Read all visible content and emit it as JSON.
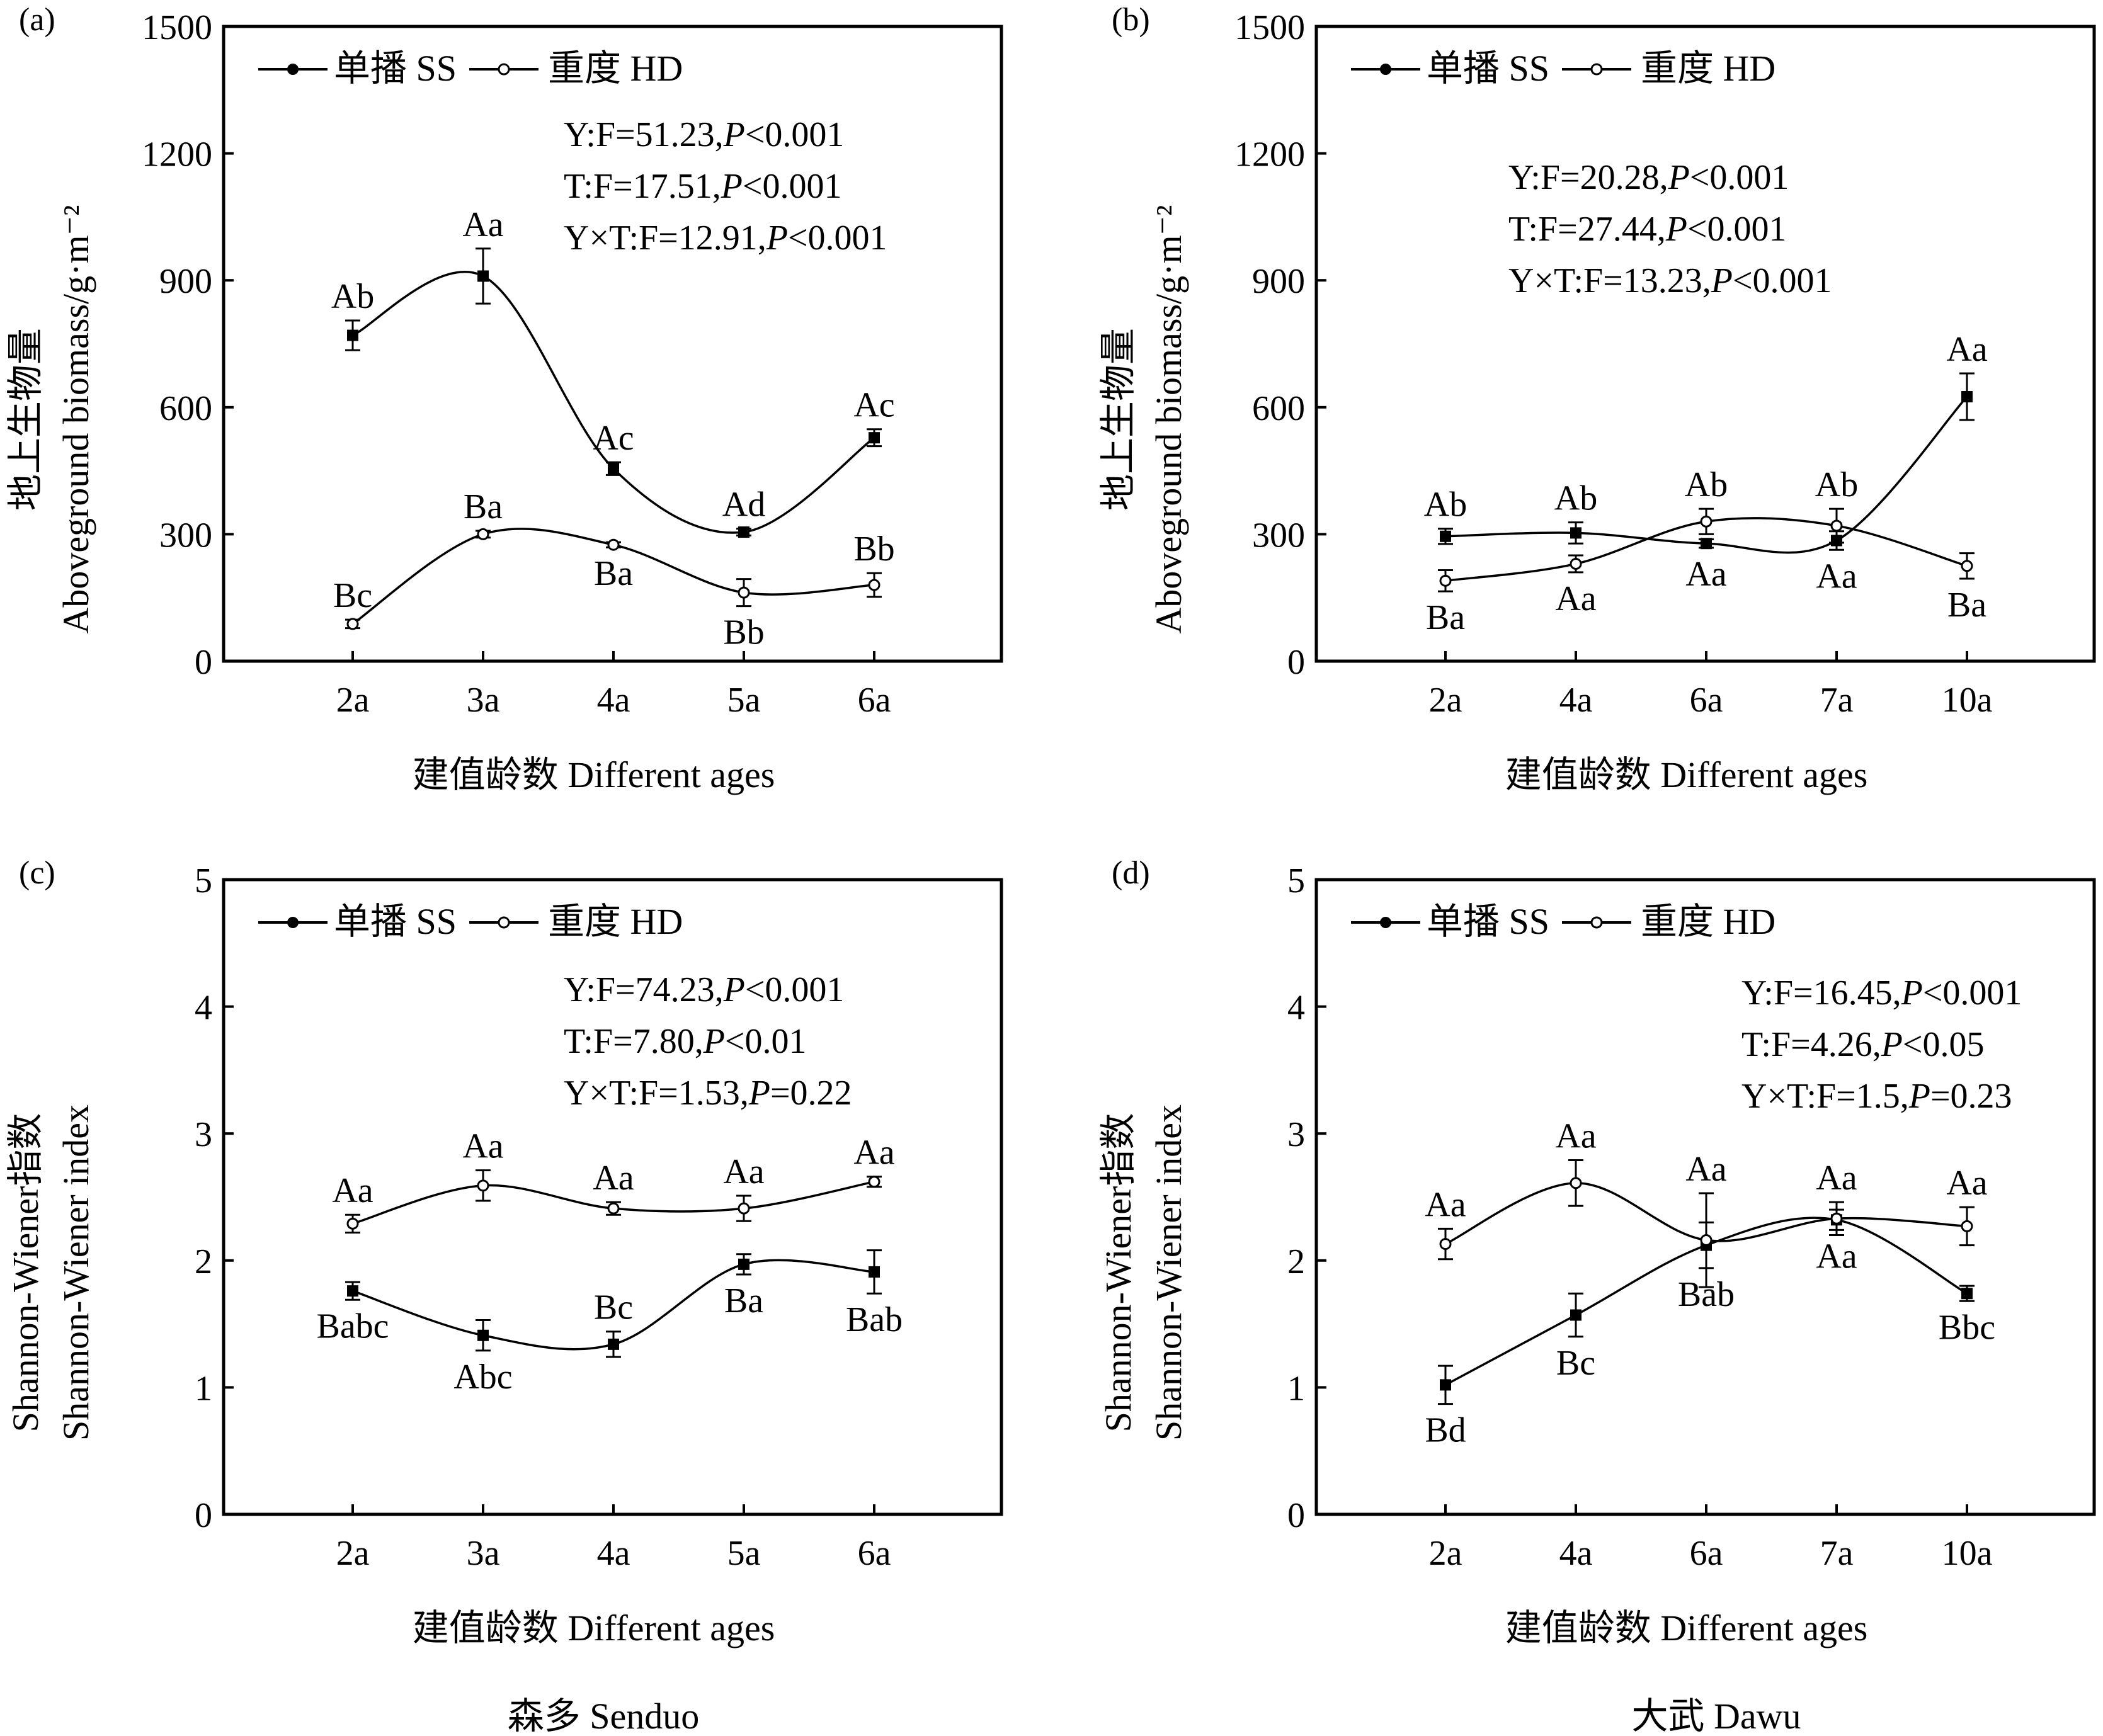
{
  "figure": {
    "bottom_labels": [
      "森多 Senduo",
      "大武 Dawu"
    ]
  },
  "chart_data": [
    {
      "panel": "(a)",
      "type": "line",
      "categories": [
        "2a",
        "3a",
        "4a",
        "5a",
        "6a"
      ],
      "xlabel": "建值龄数 Different ages",
      "ylabel": [
        "地上生物量",
        "Aboveground biomass/g·m⁻²"
      ],
      "ylim": [
        0,
        1500
      ],
      "yticks": [
        0,
        300,
        600,
        900,
        1200,
        1500
      ],
      "legend": "top-left",
      "grid": false,
      "series": [
        {
          "name": "单播 SS",
          "marker": "filled",
          "values": [
            770,
            910,
            455,
            305,
            528
          ],
          "errors": [
            35,
            65,
            15,
            8,
            20
          ],
          "labels": [
            "Ab",
            "Aa",
            "Ac",
            "Ad",
            "Ac"
          ],
          "label_pos": [
            "above",
            "above",
            "above",
            "above",
            "above"
          ]
        },
        {
          "name": "重度 HD",
          "marker": "open",
          "values": [
            88,
            300,
            275,
            162,
            180
          ],
          "errors": [
            10,
            8,
            6,
            32,
            28
          ],
          "labels": [
            "Bc",
            "Ba",
            "Ba",
            "Bb",
            "Bb"
          ],
          "label_pos": [
            "above",
            "above",
            "below",
            "below",
            "above"
          ]
        }
      ],
      "stats": [
        {
          "pre": "Y:F=51.23,",
          "p": "P",
          "post": "<0.001"
        },
        {
          "pre": "T:F=17.51,",
          "p": "P",
          "post": "<0.001"
        },
        {
          "pre": "Y×T:F=12.91,",
          "p": "P",
          "post": "<0.001"
        }
      ]
    },
    {
      "panel": "(b)",
      "type": "line",
      "categories": [
        "2a",
        "4a",
        "6a",
        "7a",
        "10a"
      ],
      "xlabel": "建值龄数 Different ages",
      "ylabel": [
        "地上生物量",
        "Aboveground biomass/g·m⁻²"
      ],
      "ylim": [
        0,
        1500
      ],
      "yticks": [
        0,
        300,
        600,
        900,
        1200,
        1500
      ],
      "legend": "top-left",
      "grid": false,
      "series": [
        {
          "name": "单播 SS",
          "marker": "filled",
          "values": [
            295,
            303,
            278,
            285,
            625
          ],
          "errors": [
            18,
            25,
            10,
            22,
            55
          ],
          "labels": [
            "Ab",
            "Ab",
            "Aa",
            "Aa",
            "Aa"
          ],
          "label_pos": [
            "above",
            "above",
            "below",
            "below",
            "above"
          ]
        },
        {
          "name": "重度 HD",
          "marker": "open",
          "values": [
            190,
            230,
            330,
            320,
            225
          ],
          "errors": [
            25,
            20,
            30,
            40,
            30
          ],
          "labels": [
            "Ba",
            "Aa",
            "Ab",
            "Ab",
            "Ba"
          ],
          "label_pos": [
            "below",
            "below",
            "above",
            "above",
            "below"
          ]
        }
      ],
      "stats": [
        {
          "pre": "Y:F=20.28,",
          "p": "P",
          "post": "<0.001"
        },
        {
          "pre": "T:F=27.44,",
          "p": "P",
          "post": "<0.001"
        },
        {
          "pre": "Y×T:F=13.23,",
          "p": "P",
          "post": "<0.001"
        }
      ]
    },
    {
      "panel": "(c)",
      "type": "line",
      "categories": [
        "2a",
        "3a",
        "4a",
        "5a",
        "6a"
      ],
      "xlabel": "建值龄数 Different ages",
      "ylabel": [
        "Shannon-Wiener指数",
        "Shannon-Wiener index"
      ],
      "ylim": [
        0,
        5
      ],
      "yticks": [
        0,
        1,
        2,
        3,
        4,
        5
      ],
      "legend": "top-left",
      "grid": false,
      "series": [
        {
          "name": "单播 SS",
          "marker": "filled",
          "values": [
            1.76,
            1.41,
            1.34,
            1.97,
            1.91
          ],
          "errors": [
            0.07,
            0.12,
            0.1,
            0.08,
            0.17
          ],
          "labels": [
            "Babc",
            "Abc",
            "Bc",
            "Ba",
            "Bab"
          ],
          "label_pos": [
            "below",
            "below",
            "above",
            "below",
            "below"
          ]
        },
        {
          "name": "重度 HD",
          "marker": "open",
          "values": [
            2.29,
            2.59,
            2.41,
            2.41,
            2.62
          ],
          "errors": [
            0.07,
            0.12,
            0.05,
            0.1,
            0.04
          ],
          "labels": [
            "Aa",
            "Aa",
            "Aa",
            "Aa",
            "Aa"
          ],
          "label_pos": [
            "above",
            "above",
            "above",
            "above",
            "above"
          ]
        }
      ],
      "stats": [
        {
          "pre": "Y:F=74.23,",
          "p": "P",
          "post": "<0.001"
        },
        {
          "pre": "T:F=7.80,",
          "p": "P",
          "post": "<0.01"
        },
        {
          "pre": "Y×T:F=1.53,",
          "p": "P",
          "post": "=0.22"
        }
      ]
    },
    {
      "panel": "(d)",
      "type": "line",
      "categories": [
        "2a",
        "4a",
        "6a",
        "7a",
        "10a"
      ],
      "xlabel": "建值龄数 Different ages",
      "ylabel": [
        "Shannon-Wiener指数",
        "Shannon-Wiener index"
      ],
      "ylim": [
        0,
        5
      ],
      "yticks": [
        0,
        1,
        2,
        3,
        4,
        5
      ],
      "legend": "top-left",
      "grid": false,
      "series": [
        {
          "name": "单播 SS",
          "marker": "filled",
          "values": [
            1.02,
            1.57,
            2.12,
            2.32,
            1.74
          ],
          "errors": [
            0.15,
            0.17,
            0.18,
            0.08,
            0.06
          ],
          "labels": [
            "Bd",
            "Bc",
            "Bab",
            "Aa",
            "Bbc"
          ],
          "label_pos": [
            "below",
            "below",
            "below",
            "below",
            "below"
          ]
        },
        {
          "name": "重度 HD",
          "marker": "open",
          "values": [
            2.13,
            2.61,
            2.16,
            2.33,
            2.27
          ],
          "errors": [
            0.12,
            0.18,
            0.37,
            0.13,
            0.15
          ],
          "labels": [
            "Aa",
            "Aa",
            "Aa",
            "Aa",
            "Aa"
          ],
          "label_pos": [
            "above",
            "above",
            "above",
            "above",
            "above"
          ]
        }
      ],
      "stats": [
        {
          "pre": "Y:F=16.45,",
          "p": "P",
          "post": "<0.001"
        },
        {
          "pre": "T:F=4.26,",
          "p": "P",
          "post": "<0.05"
        },
        {
          "pre": "Y×T:F=1.5,",
          "p": "P",
          "post": "=0.23"
        }
      ]
    }
  ]
}
